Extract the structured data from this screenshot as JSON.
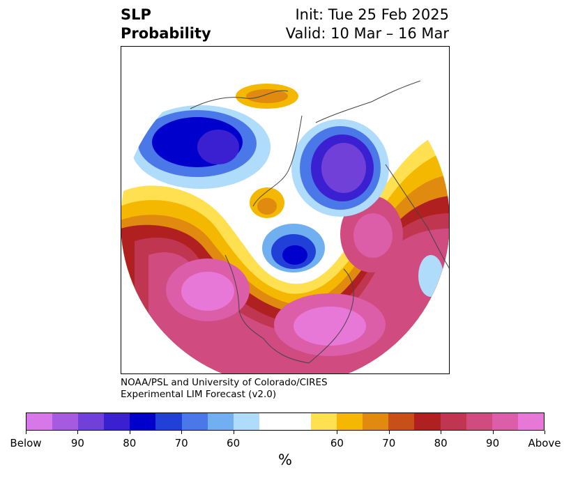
{
  "title": {
    "left_line1": "SLP",
    "left_line2": "Probability",
    "right_line1": "Init: Tue 25 Feb 2025",
    "right_line2": "Valid: 10 Mar – 16 Mar"
  },
  "credit": {
    "line1": "NOAA/PSL and University of Colorado/CIRES",
    "line2": "Experimental LIM Forecast (v2.0)"
  },
  "colorbar": {
    "colors": [
      "#d878e8",
      "#a65ae0",
      "#7040d8",
      "#3a20d0",
      "#0000cc",
      "#2040d8",
      "#4a78e8",
      "#70b0f0",
      "#aedcfa",
      "#ffffff",
      "#ffffff",
      "#ffe050",
      "#f4b800",
      "#e08a10",
      "#c85018",
      "#b02020",
      "#c03550",
      "#d04b80",
      "#dc5ea8",
      "#e878d8"
    ],
    "labels": [
      "Below",
      "90",
      "80",
      "70",
      "60",
      "60",
      "70",
      "80",
      "90",
      "Above"
    ],
    "unit": "%"
  },
  "map": {
    "projection": "North polar stereographic",
    "description_colors": {
      "below": "#0000cc",
      "above": "#e878d8"
    }
  }
}
